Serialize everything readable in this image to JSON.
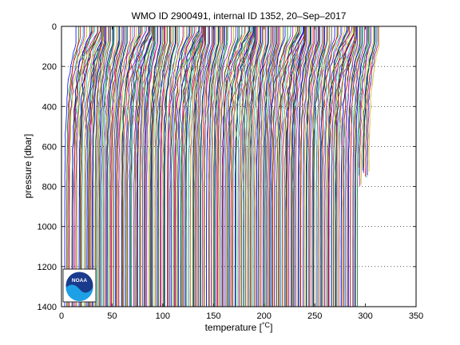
{
  "chart_data": {
    "type": "line",
    "title": "WMO ID 2900491, internal ID 1352, 20–Sep–2017",
    "xlabel": "temperature [",
    "xlabel_unit": "°C",
    "xlabel_close": "]",
    "ylabel": "pressure [dbar]",
    "xlim": [
      0,
      350
    ],
    "ylim": [
      1400,
      0
    ],
    "y_reversed": true,
    "x_ticks": [
      "0",
      "50",
      "100",
      "150",
      "200",
      "250",
      "300",
      "350"
    ],
    "y_ticks": [
      "0",
      "200",
      "400",
      "600",
      "800",
      "1000",
      "1200",
      "1400"
    ],
    "grid": "dotted horizontal",
    "profile_count": 300,
    "profile_offset_step": 1,
    "surface_pressure": 0,
    "bottom_pressure": 1400,
    "series_colors": [
      "#0000ff",
      "#008000",
      "#ff0000",
      "#00bfbf",
      "#bf00bf",
      "#bfbf00",
      "#404040"
    ],
    "logo": {
      "text": "NOAA",
      "icon": "noaa-logo-icon",
      "color_dark": "#1a3a8c",
      "color_light": "#1ea0e6"
    }
  }
}
